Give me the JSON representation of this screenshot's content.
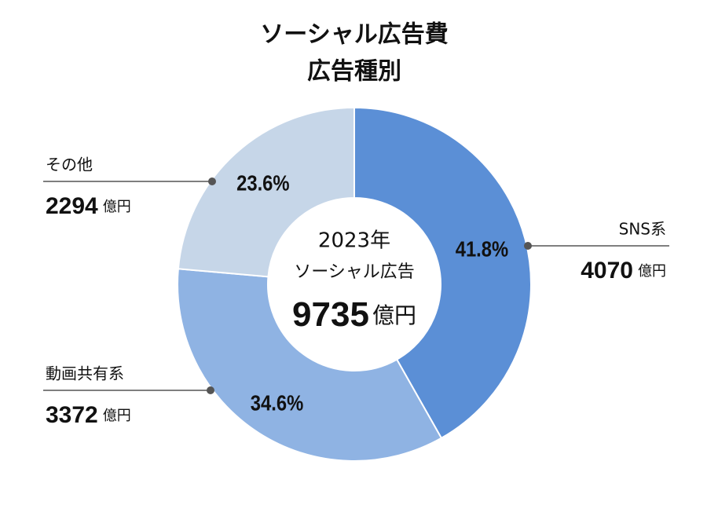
{
  "chart_data": {
    "type": "pie",
    "donut": true,
    "title": [
      "ソーシャル広告費",
      "広告種別"
    ],
    "categories": [
      "SNS系",
      "動画共有系",
      "その他"
    ],
    "values": [
      41.8,
      34.6,
      23.6
    ],
    "value_labels": [
      "41.8%",
      "34.6%",
      "23.6%"
    ],
    "amounts": [
      4070,
      3372,
      2294
    ],
    "amount_unit": "億円",
    "colors": [
      "#5b8fd6",
      "#8fb3e3",
      "#c6d6e8"
    ],
    "center": {
      "year": "2023年",
      "label": "ソーシャル広告",
      "total": 9735,
      "unit": "億円"
    }
  }
}
